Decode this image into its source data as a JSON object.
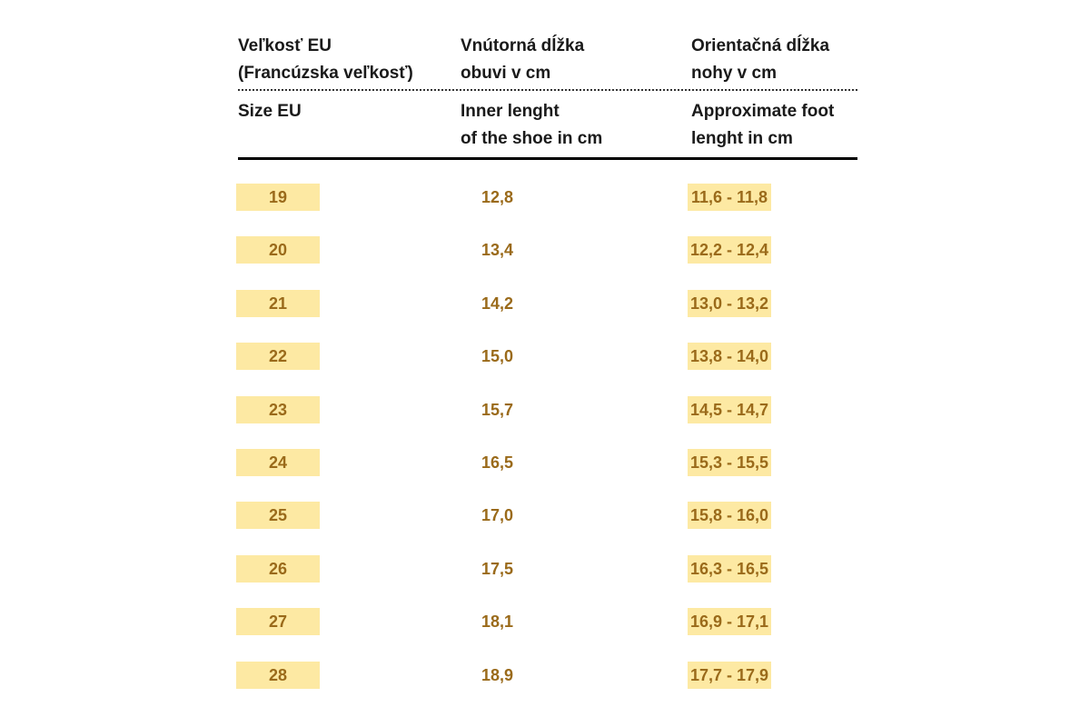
{
  "header": {
    "sk": {
      "size": "Veľkosť EU\n(Francúzska veľkosť)",
      "inner": "Vnútorná dĺžka\nobuvi v cm",
      "foot": "Orientačná dĺžka\nnohy v cm"
    },
    "en": {
      "size": "Size EU",
      "inner": "Inner lenght\nof the shoe in cm",
      "foot": "Approximate foot\nlenght in cm"
    }
  },
  "rows": [
    {
      "size": "19",
      "inner": "12,8",
      "foot": "11,6 - 11,8"
    },
    {
      "size": "20",
      "inner": "13,4",
      "foot": "12,2 - 12,4"
    },
    {
      "size": "21",
      "inner": "14,2",
      "foot": "13,0 - 13,2"
    },
    {
      "size": "22",
      "inner": "15,0",
      "foot": "13,8 - 14,0"
    },
    {
      "size": "23",
      "inner": "15,7",
      "foot": "14,5 - 14,7"
    },
    {
      "size": "24",
      "inner": "16,5",
      "foot": "15,3 - 15,5"
    },
    {
      "size": "25",
      "inner": "17,0",
      "foot": "15,8 - 16,0"
    },
    {
      "size": "26",
      "inner": "17,5",
      "foot": "16,3 - 16,5"
    },
    {
      "size": "27",
      "inner": "18,1",
      "foot": "16,9 - 17,1"
    },
    {
      "size": "28",
      "inner": "18,9",
      "foot": "17,7 - 17,9"
    }
  ],
  "colors": {
    "highlight": "#fde9a3",
    "value_text": "#9a6a1a",
    "header_text": "#1a1a1a"
  }
}
